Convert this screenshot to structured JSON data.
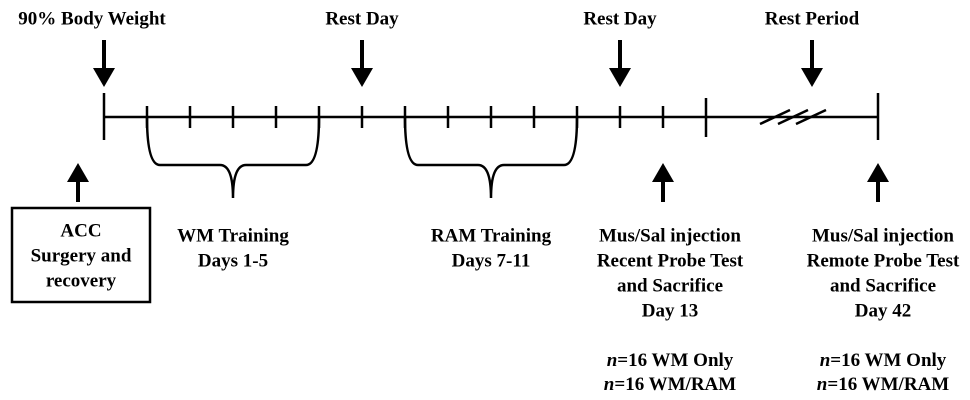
{
  "top_labels": [
    "90% Body Weight",
    "Rest Day",
    "Rest Day",
    "Rest Period"
  ],
  "box": {
    "lines": [
      "ACC",
      "Surgery and",
      "recovery"
    ]
  },
  "braces": [
    {
      "lines": [
        "WM Training",
        "Days 1-5"
      ]
    },
    {
      "lines": [
        "RAM Training",
        "Days 7-11"
      ]
    }
  ],
  "events": [
    {
      "lines": [
        "Mus/Sal injection",
        "Recent Probe Test",
        "and Sacrifice",
        "Day 13"
      ],
      "groups": [
        {
          "italic": "n",
          "text": "=16 WM Only"
        },
        {
          "italic": "n",
          "text": "=16 WM/RAM"
        }
      ]
    },
    {
      "lines": [
        "Mus/Sal injection",
        "Remote Probe Test",
        "and Sacrifice",
        "Day 42"
      ],
      "groups": [
        {
          "italic": "n",
          "text": "=16 WM Only"
        },
        {
          "italic": "n",
          "text": "=16 WM/RAM"
        }
      ]
    }
  ]
}
